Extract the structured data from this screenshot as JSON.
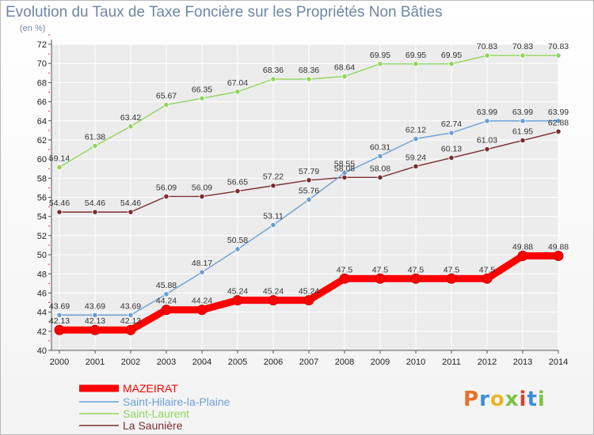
{
  "title": "Evolution du Taux de Taxe Foncière sur les Propriétés Non Bâties",
  "unit_label": "(en %)",
  "logo_text": "Proxiti",
  "colors": {
    "logo": [
      "#e8702a",
      "#3a8fd8",
      "#e8b52a",
      "#7cc242",
      "#d8402a",
      "#3a8fd8",
      "#7cc242"
    ]
  },
  "chart_data": {
    "type": "line",
    "x": [
      "2000",
      "2001",
      "2002",
      "2003",
      "2004",
      "2005",
      "2006",
      "2007",
      "2008",
      "2009",
      "2010",
      "2011",
      "2012",
      "2013",
      "2014"
    ],
    "ylim": [
      40,
      72
    ],
    "yticks": [
      40,
      42,
      44,
      46,
      48,
      50,
      52,
      54,
      56,
      58,
      60,
      62,
      64,
      66,
      68,
      70,
      72
    ],
    "grid": true,
    "legend_position": "bottom-left",
    "series": [
      {
        "name": "MAZEIRAT",
        "color": "#ff0000",
        "values": [
          42.13,
          42.13,
          42.13,
          44.24,
          44.24,
          45.24,
          45.24,
          45.24,
          47.5,
          47.5,
          47.5,
          47.5,
          47.5,
          49.88,
          49.88
        ],
        "labels": [
          "42.13",
          "42.13",
          "42.13",
          "44.24",
          "44.24",
          "45.24",
          "45.24",
          "45.24",
          "47.5",
          "47.5",
          "47.5",
          "47.5",
          "47.5",
          "49.88",
          "49.88"
        ]
      },
      {
        "name": "Saint-Hilaire-la-Plaine",
        "color": "#6a9fd6",
        "values": [
          43.69,
          43.69,
          43.69,
          45.88,
          48.17,
          50.58,
          53.11,
          55.76,
          58.55,
          60.31,
          62.12,
          62.74,
          63.99,
          63.99,
          63.99
        ],
        "labels": [
          "43.69",
          "43.69",
          "43.69",
          "45.88",
          "48.17",
          "50.58",
          "53.11",
          "55.76",
          "58.55",
          "60.31",
          "62.12",
          "62.74",
          "63.99",
          "63.99",
          "63.99"
        ]
      },
      {
        "name": "Saint-Laurent",
        "color": "#8fd65a",
        "values": [
          59.14,
          61.38,
          63.42,
          65.67,
          66.35,
          67.04,
          68.36,
          68.36,
          68.64,
          69.95,
          69.95,
          69.95,
          70.83,
          70.83,
          70.83
        ],
        "labels": [
          "59.14",
          "61.38",
          "63.42",
          "65.67",
          "66.35",
          "67.04",
          "68.36",
          "68.36",
          "68.64",
          "69.95",
          "69.95",
          "69.95",
          "70.83",
          "70.83",
          "70.83"
        ]
      },
      {
        "name": "La Saunière",
        "color": "#7a2e2e",
        "values": [
          54.46,
          54.46,
          54.46,
          56.09,
          56.09,
          56.65,
          57.22,
          57.79,
          58.08,
          58.08,
          59.24,
          60.13,
          61.03,
          61.95,
          62.88
        ],
        "labels": [
          "54.46",
          "54.46",
          "54.46",
          "56.09",
          "56.09",
          "56.65",
          "57.22",
          "57.79",
          "58.08",
          "58.08",
          "59.24",
          "60.13",
          "61.03",
          "61.95",
          "62.88"
        ]
      }
    ]
  }
}
